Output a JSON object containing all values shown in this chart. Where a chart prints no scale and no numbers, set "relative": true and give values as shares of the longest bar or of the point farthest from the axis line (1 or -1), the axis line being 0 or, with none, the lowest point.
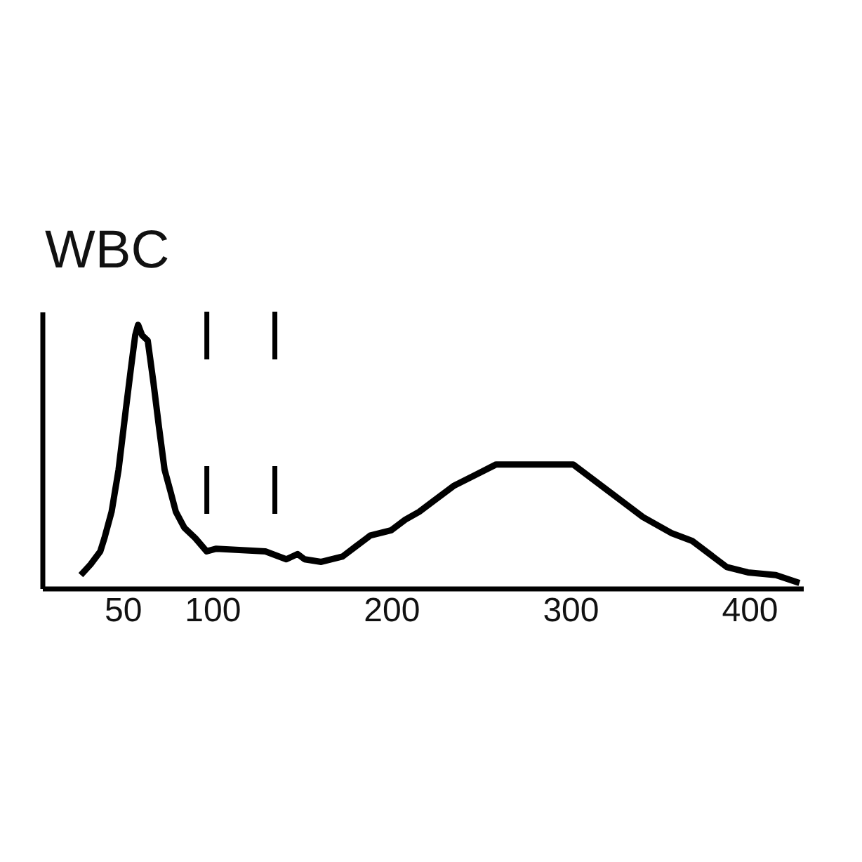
{
  "chart_data": {
    "type": "line",
    "title": "WBC",
    "relative": true,
    "xlim": [
      5,
      430
    ],
    "xticks": [
      50,
      100,
      200,
      300,
      400
    ],
    "line_style": "solid",
    "x": [
      26.6,
      32,
      37.5,
      39.8,
      43.8,
      47.7,
      51.6,
      54.7,
      57,
      58.6,
      60.9,
      64,
      67.2,
      70.3,
      73.4,
      76.6,
      79.7,
      84.4,
      90.6,
      96.9,
      102.3,
      129.7,
      137.5,
      141.4,
      147.7,
      151.6,
      160.9,
      172.7,
      180.5,
      188.3,
      200,
      207.8,
      215.6,
      223.4,
      235.2,
      246.9,
      258.6,
      301.6,
      309.4,
      325,
      340.6,
      356.3,
      368,
      379.7,
      387.5,
      399.2,
      414.8,
      428
    ],
    "series": [
      {
        "color": "#000000",
        "values": [
          0.05,
          0.09,
          0.14,
          0.19,
          0.29,
          0.45,
          0.67,
          0.84,
          0.96,
          1,
          0.96,
          0.94,
          0.78,
          0.61,
          0.45,
          0.37,
          0.29,
          0.23,
          0.19,
          0.14,
          0.15,
          0.14,
          0.12,
          0.11,
          0.13,
          0.11,
          0.1,
          0.12,
          0.16,
          0.2,
          0.22,
          0.26,
          0.29,
          0.33,
          0.39,
          0.43,
          0.47,
          0.47,
          0.43,
          0.35,
          0.27,
          0.21,
          0.18,
          0.12,
          0.08,
          0.06,
          0.05,
          0.02
        ]
      }
    ],
    "ref_lines": [
      {
        "axis": "x",
        "value": 97,
        "line_style": "dashed",
        "color": "#000000"
      },
      {
        "axis": "x",
        "value": 135,
        "line_style": "dashed",
        "color": "#000000"
      }
    ]
  }
}
